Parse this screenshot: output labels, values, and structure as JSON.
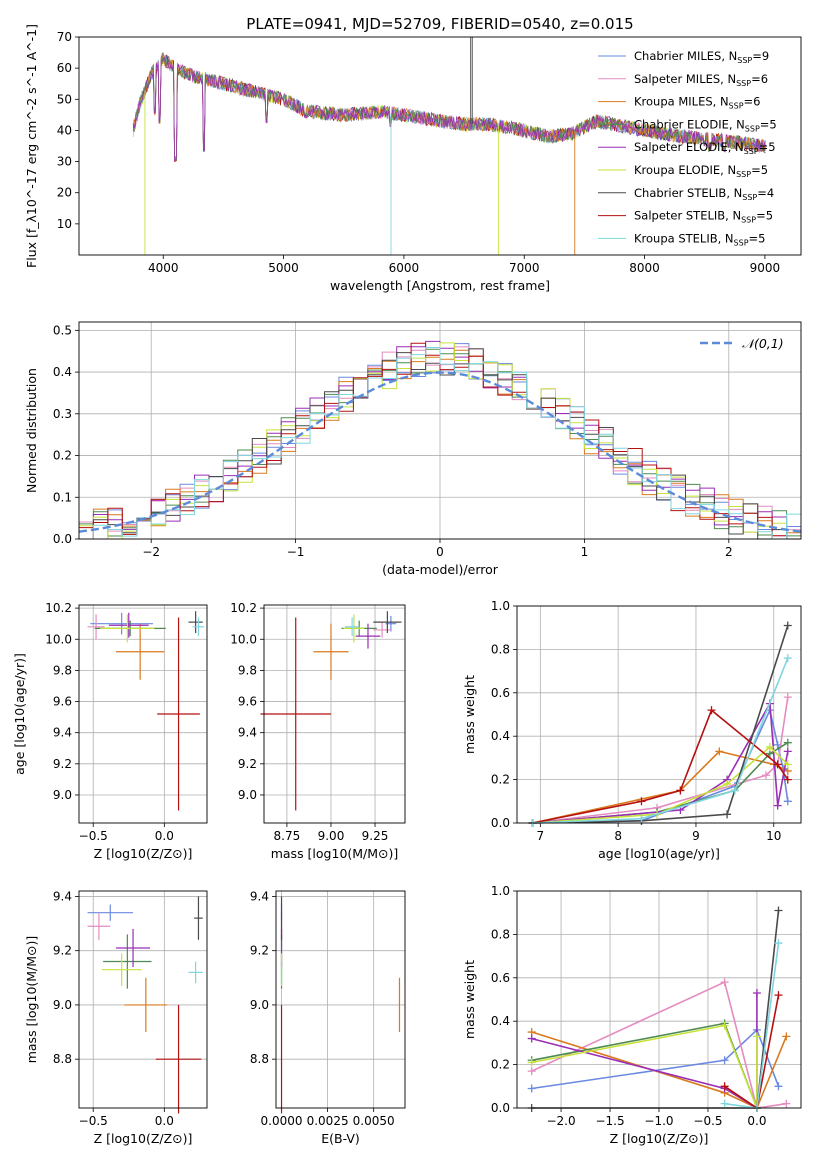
{
  "title": "PLATE=0941, MJD=52709, FIBERID=0540, z=0.015",
  "models": [
    {
      "name": "Chabrier MILES",
      "nssp": "9",
      "color": "#6a89e0"
    },
    {
      "name": "Salpeter MILES",
      "nssp": "6",
      "color": "#e48cbf"
    },
    {
      "name": "Kroupa MILES",
      "nssp": "6",
      "color": "#d97a1e"
    },
    {
      "name": "Chabrier ELODIE",
      "nssp": "5",
      "color": "#4e8a52"
    },
    {
      "name": "Salpeter ELODIE",
      "nssp": "5",
      "color": "#9a2eb6"
    },
    {
      "name": "Kroupa ELODIE",
      "nssp": "5",
      "color": "#c8e23c"
    },
    {
      "name": "Chabrier STELIB",
      "nssp": "4",
      "color": "#4a4a4a"
    },
    {
      "name": "Salpeter STELIB",
      "nssp": "5",
      "color": "#b51010"
    },
    {
      "name": "Kroupa STELIB",
      "nssp": "5",
      "color": "#7fd6e0"
    }
  ],
  "chart_data": [
    {
      "id": "spectrum",
      "type": "line",
      "xlabel": "wavelength [Angstrom, rest frame]",
      "ylabel": "Flux [f_λ10^-17 erg cm^-2 s^-1 A^-1]",
      "xlim": [
        3300,
        9300
      ],
      "ylim": [
        0,
        70
      ],
      "xticks": [
        4000,
        5000,
        6000,
        7000,
        8000,
        9000
      ],
      "yticks": [
        10,
        20,
        30,
        40,
        50,
        60,
        70
      ],
      "legend": "top-right",
      "grid": false,
      "continuum": {
        "x": [
          3750,
          3800,
          3900,
          4000,
          4100,
          4200,
          4300,
          4500,
          4700,
          5000,
          5200,
          5500,
          5800,
          6000,
          6300,
          6500,
          6700,
          7000,
          7200,
          7400,
          7600,
          8000,
          8300,
          8600,
          9000
        ],
        "y": [
          40,
          48,
          58,
          63,
          60,
          58,
          57,
          55,
          53,
          50,
          46,
          45,
          46,
          45,
          43,
          42,
          42,
          40,
          38,
          39,
          43,
          40,
          38,
          37,
          35
        ]
      },
      "features": [
        {
          "x": 3933,
          "y": 45
        },
        {
          "x": 3968,
          "y": 42
        },
        {
          "x": 4102,
          "y": 30
        },
        {
          "x": 4340,
          "y": 33
        },
        {
          "x": 4861,
          "y": 42
        },
        {
          "x": 5175,
          "y": 44
        },
        {
          "x": 5893,
          "y": 41
        },
        {
          "x": 6563,
          "y": 52
        },
        {
          "x": 8498,
          "y": 35
        },
        {
          "x": 8542,
          "y": 33
        },
        {
          "x": 8662,
          "y": 33
        }
      ],
      "masked": [
        {
          "x": 3848,
          "y": 0,
          "model": 5
        },
        {
          "x": 5893,
          "y": 0,
          "model": 8
        },
        {
          "x": 6785,
          "y": 0,
          "model": 5
        },
        {
          "x": 7420,
          "y": 0,
          "model": 2
        },
        {
          "x": 6555,
          "y": 70,
          "model": 6
        },
        {
          "x": 6568,
          "y": 70,
          "model": 6
        }
      ]
    },
    {
      "id": "residuals",
      "type": "histogram",
      "xlabel": "(data-model)/error",
      "ylabel": "Normed distribution",
      "xlim": [
        -2.5,
        2.5
      ],
      "ylim": [
        0,
        0.52
      ],
      "xticks": [
        -2,
        -1,
        0,
        1,
        2
      ],
      "yticks": [
        0,
        0.1,
        0.2,
        0.3,
        0.4,
        0.5
      ],
      "grid": true,
      "legend": "top-right",
      "reference": {
        "name": "𝒩(0,1)",
        "mean": 0,
        "sigma": 1
      },
      "bin_width": 0.1,
      "bin_start": -2.5
    },
    {
      "id": "age_vs_Z",
      "type": "scatter",
      "xlabel": "Z [log10(Z/Z⊙)]",
      "ylabel": "age [log10(age/yr)]",
      "xlim": [
        -0.6,
        0.3
      ],
      "ylim": [
        8.82,
        10.22
      ],
      "xticks": [
        -0.5,
        0.0
      ],
      "yticks": [
        9.0,
        9.2,
        9.4,
        9.6,
        9.8,
        10.0,
        10.2
      ],
      "grid": true,
      "points": [
        {
          "x": -0.3,
          "xerr": 0.22,
          "y": 10.1,
          "yerr": 0.07
        },
        {
          "x": -0.48,
          "xerr": 0.06,
          "y": 10.08,
          "yerr": 0.08
        },
        {
          "x": -0.17,
          "xerr": 0.17,
          "y": 9.92,
          "yerr": 0.18
        },
        {
          "x": -0.24,
          "xerr": 0.25,
          "y": 10.07,
          "yerr": 0.05
        },
        {
          "x": -0.25,
          "xerr": 0.14,
          "y": 10.09,
          "yerr": 0.08
        },
        {
          "x": -0.26,
          "xerr": 0.19,
          "y": 10.07,
          "yerr": 0.09
        },
        {
          "x": 0.22,
          "xerr": 0.05,
          "y": 10.11,
          "yerr": 0.07
        },
        {
          "x": 0.1,
          "xerr": 0.15,
          "y": 9.52,
          "yerr": 0.62
        },
        {
          "x": 0.24,
          "xerr": 0.04,
          "y": 10.08,
          "yerr": 0.06
        }
      ]
    },
    {
      "id": "age_vs_mass",
      "type": "scatter",
      "xlabel": "mass [log10(M/M⊙)]",
      "ylabel": "",
      "xlim": [
        8.62,
        9.42
      ],
      "ylim": [
        8.82,
        10.22
      ],
      "xticks": [
        8.75,
        9.0,
        9.25
      ],
      "yticks": [
        9.0,
        9.2,
        9.4,
        9.6,
        9.8,
        10.0,
        10.2
      ],
      "grid": true,
      "points": [
        {
          "x": 9.34,
          "xerr": 0.03,
          "y": 10.1,
          "yerr": 0.05
        },
        {
          "x": 9.29,
          "xerr": 0.05,
          "y": 10.06,
          "yerr": 0.05
        },
        {
          "x": 9.0,
          "xerr": 0.1,
          "y": 9.92,
          "yerr": 0.18
        },
        {
          "x": 9.16,
          "xerr": 0.1,
          "y": 10.07,
          "yerr": 0.05
        },
        {
          "x": 9.21,
          "xerr": 0.07,
          "y": 10.02,
          "yerr": 0.08
        },
        {
          "x": 9.13,
          "xerr": 0.06,
          "y": 10.07,
          "yerr": 0.09
        },
        {
          "x": 9.32,
          "xerr": 0.08,
          "y": 10.11,
          "yerr": 0.07
        },
        {
          "x": 8.8,
          "xerr": 0.2,
          "y": 9.52,
          "yerr": 0.62
        },
        {
          "x": 9.12,
          "xerr": 0.04,
          "y": 10.08,
          "yerr": 0.06
        }
      ]
    },
    {
      "id": "mass_weight_vs_age",
      "type": "line",
      "xlabel": "age [log10(age/yr)]",
      "ylabel": "mass weight",
      "xlim": [
        6.7,
        10.35
      ],
      "ylim": [
        0,
        1.0
      ],
      "xticks": [
        7,
        8,
        9,
        10
      ],
      "yticks": [
        0.0,
        0.2,
        0.4,
        0.6,
        0.8,
        1.0
      ],
      "grid": true,
      "series": [
        {
          "model": 0,
          "x": [
            6.9,
            8.3,
            9.5,
            9.95,
            10.05,
            10.12,
            10.18
          ],
          "y": [
            0.0,
            0.01,
            0.17,
            0.52,
            0.36,
            0.25,
            0.1
          ]
        },
        {
          "model": 1,
          "x": [
            6.9,
            8.5,
            9.9,
            10.05,
            10.18
          ],
          "y": [
            0.0,
            0.07,
            0.22,
            0.27,
            0.58
          ]
        },
        {
          "model": 2,
          "x": [
            6.9,
            8.8,
            9.3,
            10.0,
            10.18
          ],
          "y": [
            0.0,
            0.15,
            0.33,
            0.27,
            0.24
          ]
        },
        {
          "model": 3,
          "x": [
            6.9,
            8.5,
            9.5,
            9.95,
            10.18
          ],
          "y": [
            0.0,
            0.05,
            0.15,
            0.32,
            0.37
          ]
        },
        {
          "model": 4,
          "x": [
            6.9,
            8.8,
            9.4,
            9.95,
            10.05,
            10.18
          ],
          "y": [
            0.0,
            0.06,
            0.2,
            0.55,
            0.08,
            0.33
          ]
        },
        {
          "model": 5,
          "x": [
            6.9,
            8.5,
            9.4,
            9.95,
            10.18
          ],
          "y": [
            0.0,
            0.04,
            0.18,
            0.35,
            0.27
          ]
        },
        {
          "model": 6,
          "x": [
            6.9,
            8.3,
            9.4,
            10.18
          ],
          "y": [
            0.0,
            0.01,
            0.04,
            0.91
          ]
        },
        {
          "model": 7,
          "x": [
            6.9,
            8.3,
            8.8,
            9.2,
            10.05,
            10.18
          ],
          "y": [
            0.0,
            0.1,
            0.15,
            0.52,
            0.27,
            0.2
          ]
        },
        {
          "model": 8,
          "x": [
            6.9,
            8.3,
            9.5,
            10.18
          ],
          "y": [
            0.0,
            0.02,
            0.15,
            0.76
          ]
        }
      ]
    },
    {
      "id": "mass_vs_Z",
      "type": "scatter",
      "xlabel": "Z [log10(Z/Z⊙)]",
      "ylabel": "mass [log10(M/M⊙)]",
      "xlim": [
        -0.6,
        0.3
      ],
      "ylim": [
        8.62,
        9.42
      ],
      "xticks": [
        -0.5,
        0.0
      ],
      "yticks": [
        8.8,
        9.0,
        9.2,
        9.4
      ],
      "grid": true,
      "points": [
        {
          "x": -0.38,
          "xerr": 0.16,
          "y": 9.34,
          "yerr": 0.03
        },
        {
          "x": -0.46,
          "xerr": 0.08,
          "y": 9.29,
          "yerr": 0.05
        },
        {
          "x": -0.13,
          "xerr": 0.15,
          "y": 9.0,
          "yerr": 0.1
        },
        {
          "x": -0.26,
          "xerr": 0.17,
          "y": 9.16,
          "yerr": 0.1
        },
        {
          "x": -0.22,
          "xerr": 0.12,
          "y": 9.21,
          "yerr": 0.07
        },
        {
          "x": -0.3,
          "xerr": 0.14,
          "y": 9.13,
          "yerr": 0.06
        },
        {
          "x": 0.24,
          "xerr": 0.03,
          "y": 9.32,
          "yerr": 0.08
        },
        {
          "x": 0.1,
          "xerr": 0.16,
          "y": 8.8,
          "yerr": 0.2
        },
        {
          "x": 0.22,
          "xerr": 0.05,
          "y": 9.12,
          "yerr": 0.04
        }
      ]
    },
    {
      "id": "mass_vs_ebv",
      "type": "scatter",
      "xlabel": "E(B-V)",
      "ylabel": "",
      "xlim": [
        -0.0003,
        0.0067
      ],
      "ylim": [
        8.62,
        9.42
      ],
      "xticks": [
        0.0,
        0.0025,
        0.005
      ],
      "yticks": [
        8.8,
        9.0,
        9.2,
        9.4
      ],
      "grid": true,
      "tick_labels": [
        "0.0000",
        "0.0025",
        "0.0050"
      ],
      "points": [
        {
          "x": 0.0,
          "xerr": 0,
          "y": 9.34,
          "yerr": 0.03
        },
        {
          "x": 0.0,
          "xerr": 0,
          "y": 9.29,
          "yerr": 0.05
        },
        {
          "x": 0.0064,
          "xerr": 0,
          "y": 9.0,
          "yerr": 0.1
        },
        {
          "x": 0.0,
          "xerr": 0,
          "y": 9.16,
          "yerr": 0.1
        },
        {
          "x": 0.0,
          "xerr": 0,
          "y": 9.21,
          "yerr": 0.07
        },
        {
          "x": 0.0,
          "xerr": 0,
          "y": 9.13,
          "yerr": 0.06
        },
        {
          "x": 0.0,
          "xerr": 0,
          "y": 9.32,
          "yerr": 0.08
        },
        {
          "x": 0.0,
          "xerr": 0,
          "y": 8.8,
          "yerr": 0.2
        },
        {
          "x": 0.0,
          "xerr": 0,
          "y": 9.12,
          "yerr": 0.04
        }
      ]
    },
    {
      "id": "mass_weight_vs_Z",
      "type": "line",
      "xlabel": "Z [log10(Z/Z⊙)]",
      "ylabel": "mass weight",
      "xlim": [
        -2.45,
        0.45
      ],
      "ylim": [
        0,
        1.0
      ],
      "xticks": [
        -2.0,
        -1.5,
        -1.0,
        -0.5,
        0.0
      ],
      "yticks": [
        0.0,
        0.2,
        0.4,
        0.6,
        0.8,
        1.0
      ],
      "grid": true,
      "series": [
        {
          "model": 0,
          "x": [
            -2.3,
            -0.33,
            0.0,
            0.22
          ],
          "y": [
            0.09,
            0.22,
            0.36,
            0.1
          ]
        },
        {
          "model": 1,
          "x": [
            -2.3,
            -0.33,
            0.0,
            0.3
          ],
          "y": [
            0.17,
            0.58,
            0.0,
            0.02
          ]
        },
        {
          "model": 2,
          "x": [
            -2.3,
            -0.33,
            0.0,
            0.3
          ],
          "y": [
            0.35,
            0.07,
            0.0,
            0.33
          ]
        },
        {
          "model": 3,
          "x": [
            -2.3,
            -0.33,
            0.0,
            0.0
          ],
          "y": [
            0.22,
            0.39,
            0.0,
            0.0
          ]
        },
        {
          "model": 4,
          "x": [
            -2.3,
            -0.33,
            0.0,
            0.0
          ],
          "y": [
            0.32,
            0.09,
            0.0,
            0.53
          ]
        },
        {
          "model": 5,
          "x": [
            -2.3,
            -0.33,
            0.0,
            0.0
          ],
          "y": [
            0.21,
            0.38,
            0.0,
            0.33
          ]
        },
        {
          "model": 6,
          "x": [
            -2.3,
            0.0,
            0.22
          ],
          "y": [
            0.0,
            0.0,
            0.91
          ]
        },
        {
          "model": 7,
          "x": [
            -0.33,
            0.0,
            0.22
          ],
          "y": [
            0.1,
            0.0,
            0.52
          ]
        },
        {
          "model": 8,
          "x": [
            -0.33,
            0.0,
            0.22
          ],
          "y": [
            0.02,
            0.0,
            0.76
          ]
        }
      ]
    }
  ]
}
